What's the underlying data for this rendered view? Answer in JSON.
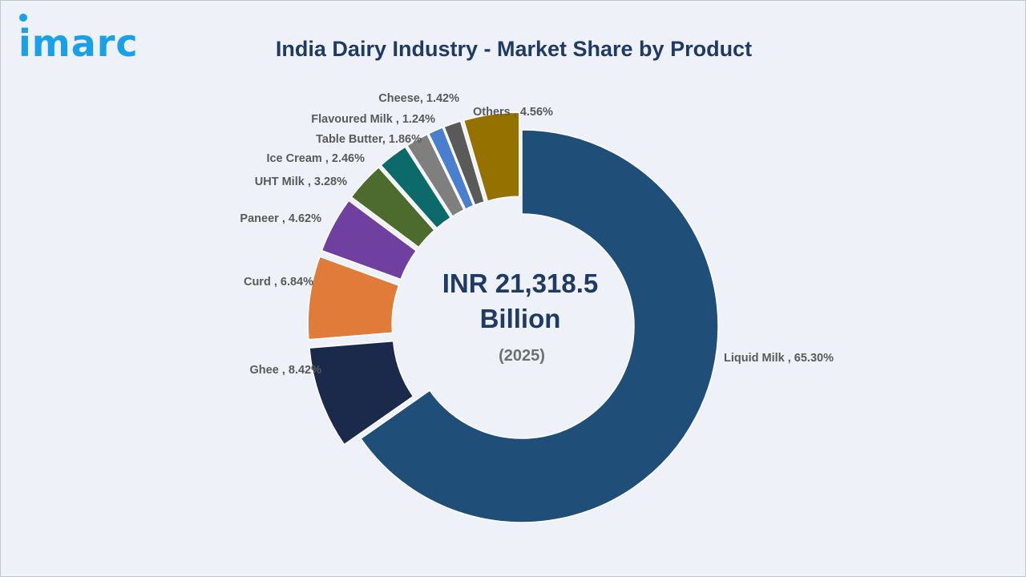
{
  "brand": {
    "logo_text": "imarc",
    "logo_color": "#1aa0e8"
  },
  "title": "India Dairy Industry - Market Share by Product",
  "colors": {
    "title": "#1f3a63",
    "label": "#595959",
    "center": "#1f3a63",
    "year": "#6f6f6f"
  },
  "chart_data": {
    "type": "donut",
    "title": "India Dairy Industry - Market Share by Product",
    "unit": "%",
    "slices": [
      {
        "name": "Liquid Milk",
        "value": 65.3,
        "label": "Liquid Milk , 65.30%",
        "color": "#1f4e79",
        "exploded": false
      },
      {
        "name": "Ghee",
        "value": 8.42,
        "label": "Ghee  , 8.42%",
        "color": "#1b2a4a",
        "exploded": true
      },
      {
        "name": "Curd",
        "value": 6.84,
        "label": "Curd  , 6.84%",
        "color": "#e07b39",
        "exploded": true
      },
      {
        "name": "Paneer",
        "value": 4.62,
        "label": "Paneer , 4.62%",
        "color": "#7040a0",
        "exploded": true
      },
      {
        "name": "UHT Milk",
        "value": 3.28,
        "label": "UHT Milk , 3.28%",
        "color": "#4e6b2e",
        "exploded": true
      },
      {
        "name": "Ice Cream",
        "value": 2.46,
        "label": "Ice Cream , 2.46%",
        "color": "#0c6a6a",
        "exploded": true
      },
      {
        "name": "Table Butter",
        "value": 1.86,
        "label": "Table Butter, 1.86%",
        "color": "#7f7f7f",
        "exploded": true
      },
      {
        "name": "Flavoured Milk",
        "value": 1.24,
        "label": "Flavoured Milk , 1.24%",
        "color": "#4a7fd0",
        "exploded": true
      },
      {
        "name": "Cheese",
        "value": 1.42,
        "label": "Cheese, 1.42%",
        "color": "#5a5a5a",
        "exploded": true
      },
      {
        "name": "Others",
        "value": 4.56,
        "label": "Others , 4.56%",
        "color": "#957200",
        "exploded": true
      }
    ],
    "center": {
      "value_line1": "INR 21,318.5",
      "value_line2": "Billion",
      "year": "(2025)"
    },
    "legend": "none"
  }
}
